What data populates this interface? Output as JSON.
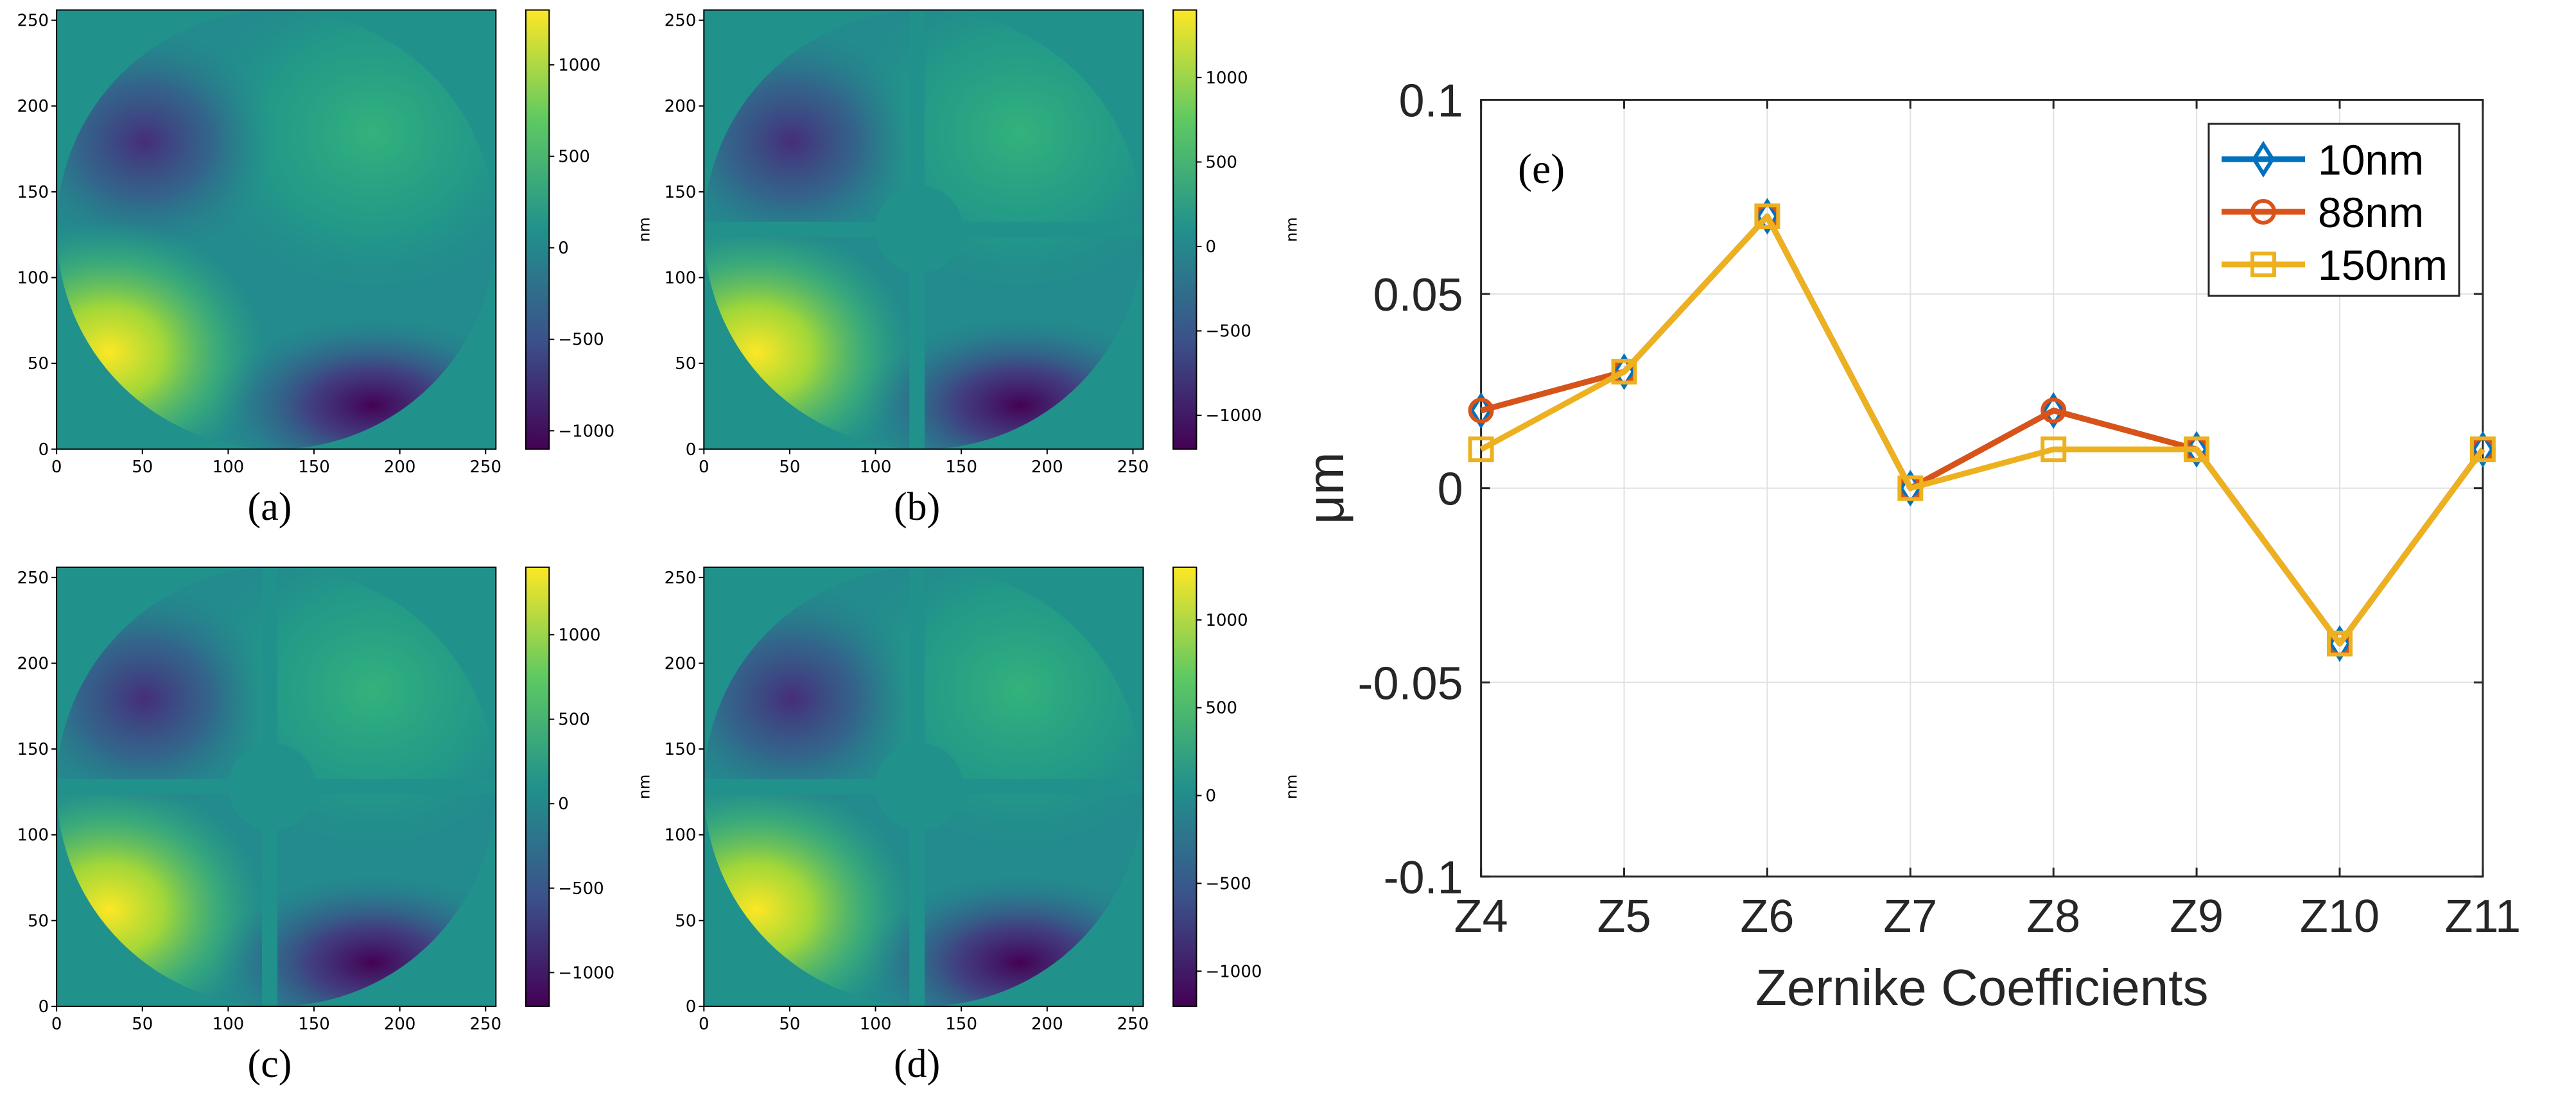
{
  "panels": [
    {
      "label": "(a)",
      "colorbar_ticks": [
        1000,
        500,
        0,
        -500,
        -1000
      ],
      "cbar_range": [
        -1100,
        1300
      ],
      "cbar_unit": "nm",
      "spiders": false
    },
    {
      "label": "(b)",
      "colorbar_ticks": [
        1000,
        500,
        0,
        -500,
        -1000
      ],
      "cbar_range": [
        -1200,
        1400
      ],
      "cbar_unit": "nm",
      "spiders": true
    },
    {
      "label": "(c)",
      "colorbar_ticks": [
        1000,
        500,
        0,
        -500,
        -1000
      ],
      "cbar_range": [
        -1200,
        1400
      ],
      "cbar_unit": "nm",
      "spiders": true
    },
    {
      "label": "(d)",
      "colorbar_ticks": [
        1000,
        500,
        0,
        -500,
        -1000
      ],
      "cbar_range": [
        -1200,
        1300
      ],
      "cbar_unit": "nm",
      "spiders": true
    }
  ],
  "panel_axis_ticks": [
    "0",
    "50",
    "100",
    "150",
    "200",
    "250"
  ],
  "chart_data": {
    "type": "line",
    "annotation": "(e)",
    "categories": [
      "Z4",
      "Z5",
      "Z6",
      "Z7",
      "Z8",
      "Z9",
      "Z10",
      "Z11"
    ],
    "xlabel": "Zernike Coefficients",
    "ylabel": "μm",
    "ylim": [
      -0.1,
      0.1
    ],
    "yticks": [
      "0.1",
      "0.05",
      "0",
      "-0.05",
      "-0.1"
    ],
    "ytick_values": [
      0.1,
      0.05,
      0,
      -0.05,
      -0.1
    ],
    "grid": true,
    "legend_position": "top-right",
    "series": [
      {
        "name": "10nm",
        "color": "#0072BD",
        "marker": "diamond",
        "values": [
          0.02,
          0.03,
          0.07,
          0.0,
          0.02,
          0.01,
          -0.04,
          0.01
        ]
      },
      {
        "name": "88nm",
        "color": "#D95319",
        "marker": "circle",
        "values": [
          0.02,
          0.03,
          0.07,
          0.0,
          0.02,
          0.01,
          -0.04,
          0.01
        ]
      },
      {
        "name": "150nm",
        "color": "#EDB120",
        "marker": "square",
        "values": [
          0.01,
          0.03,
          0.07,
          0.0,
          0.01,
          0.01,
          -0.04,
          0.01
        ]
      }
    ]
  }
}
